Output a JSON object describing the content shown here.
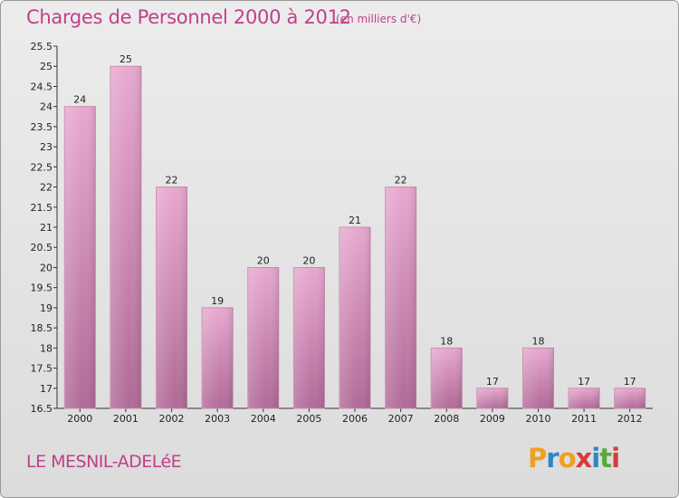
{
  "header": {
    "title": "Charges de Personnel 2000 à 2012",
    "subtitle": "(en milliers d'€)"
  },
  "footer": {
    "commune": "LE MESNIL-ADELéE",
    "logo": "Proxiti"
  },
  "colors": {
    "title": "#c0408a",
    "bar_top": "#e8a8d0",
    "bar_bottom": "#b06a96",
    "logo_letters": [
      "#f0a020",
      "#2e86c8",
      "#f0a020",
      "#d43c3c",
      "#2e86c8",
      "#5aa83c",
      "#d43c3c"
    ]
  },
  "chart_data": {
    "type": "bar",
    "categories": [
      "2000",
      "2001",
      "2002",
      "2003",
      "2004",
      "2005",
      "2006",
      "2007",
      "2008",
      "2009",
      "2010",
      "2011",
      "2012"
    ],
    "values": [
      24,
      25,
      22,
      19,
      20,
      20,
      21,
      22,
      18,
      17,
      18,
      17,
      17
    ],
    "data_labels": [
      "24",
      "25",
      "22",
      "19",
      "20",
      "20",
      "21",
      "22",
      "18",
      "17",
      "18",
      "17",
      "17"
    ],
    "ylim": [
      16.5,
      25.5
    ],
    "yticks": [
      16.5,
      17,
      17.5,
      18,
      18.5,
      19,
      19.5,
      20,
      20.5,
      21,
      21.5,
      22,
      22.5,
      23,
      23.5,
      24,
      24.5,
      25,
      25.5
    ],
    "ytick_labels": [
      "16.5",
      "17",
      "17.5",
      "18",
      "18.5",
      "19",
      "19.5",
      "20",
      "20.5",
      "21",
      "21.5",
      "22",
      "22.5",
      "23",
      "23.5",
      "24",
      "24.5",
      "25",
      "25.5"
    ],
    "grid": false,
    "xlabel": "",
    "ylabel": ""
  }
}
